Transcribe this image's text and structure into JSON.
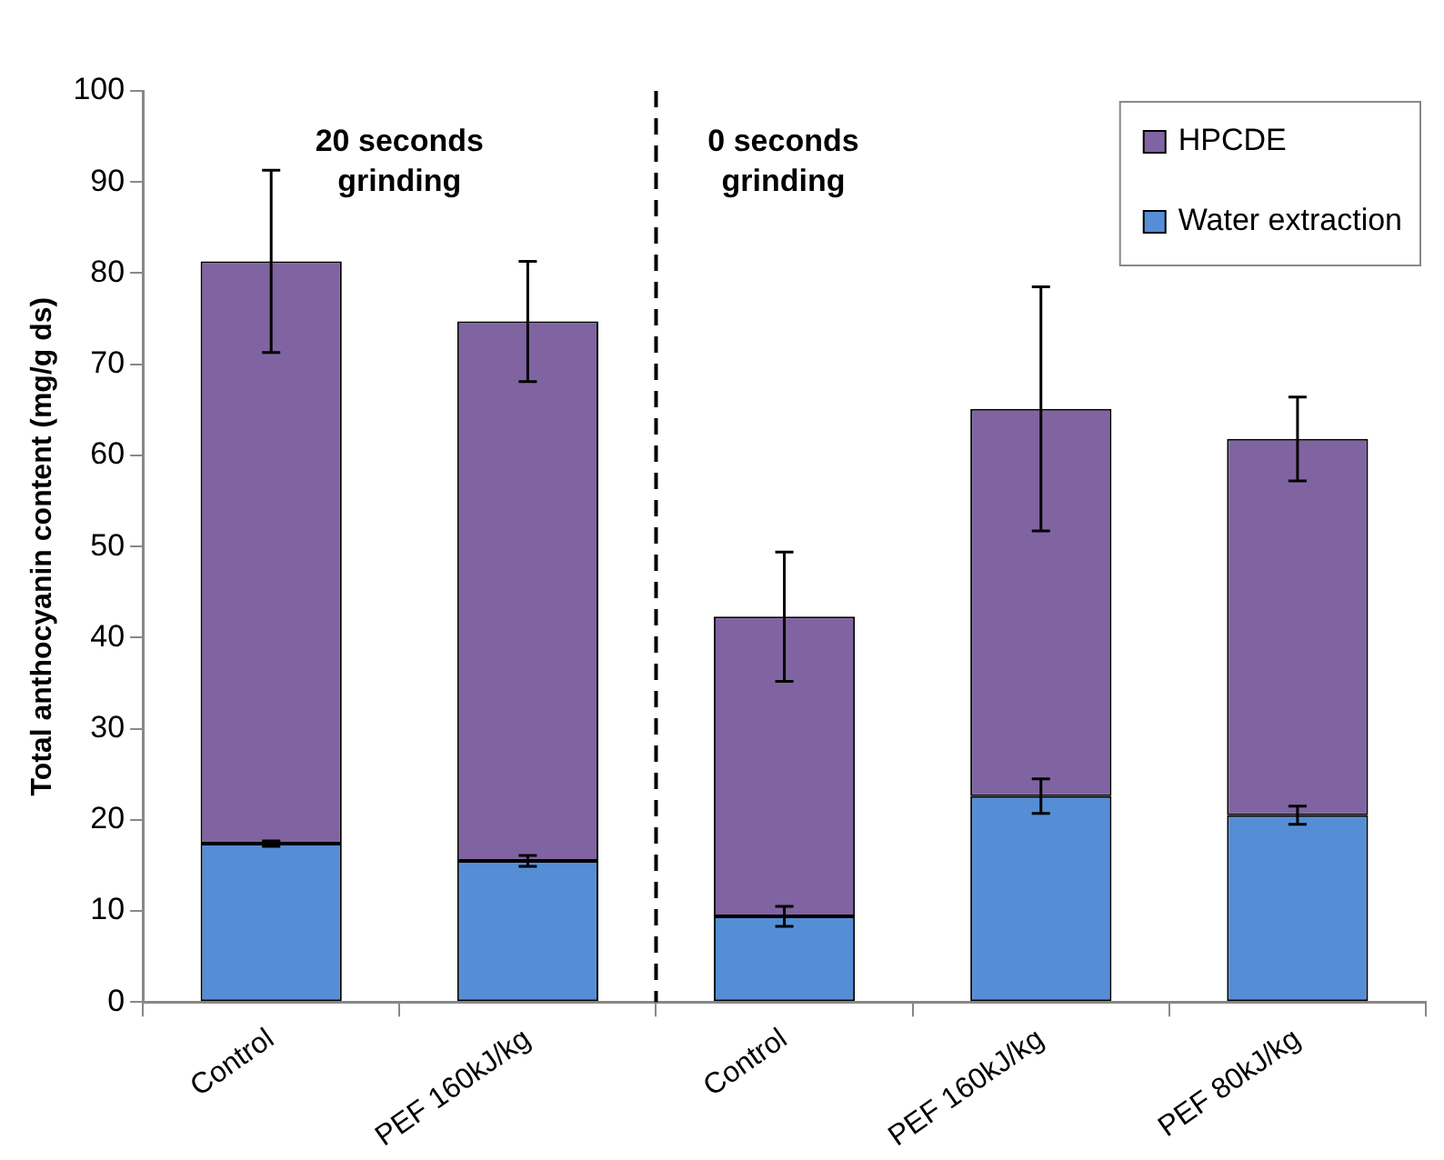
{
  "chart_data": {
    "type": "bar",
    "stacked": true,
    "ylabel": "Total anthocyanin content (mg/g ds)",
    "categories": [
      "Control",
      "PEF 160kJ/kg",
      "Control",
      "PEF 160kJ/kg",
      "PEF 80kJ/kg"
    ],
    "series": [
      {
        "name": "Water extraction",
        "color": "#558ed5",
        "values": [
          17.4,
          15.5,
          9.4,
          22.6,
          20.5
        ],
        "errors": [
          0.3,
          0.6,
          1.1,
          1.9,
          1.0
        ]
      },
      {
        "name": "HPCDE",
        "color": "#8064a2",
        "values": [
          63.9,
          59.2,
          32.9,
          42.5,
          41.3
        ],
        "errors": [
          10.0,
          6.6,
          7.1,
          13.4,
          4.6
        ]
      }
    ],
    "ylim": [
      0,
      100
    ],
    "yticks": [
      0,
      10,
      20,
      30,
      40,
      50,
      60,
      70,
      80,
      90,
      100
    ],
    "grid": false,
    "legend": "top right",
    "annotations": [
      "20 seconds grinding",
      "0 seconds grinding"
    ]
  }
}
